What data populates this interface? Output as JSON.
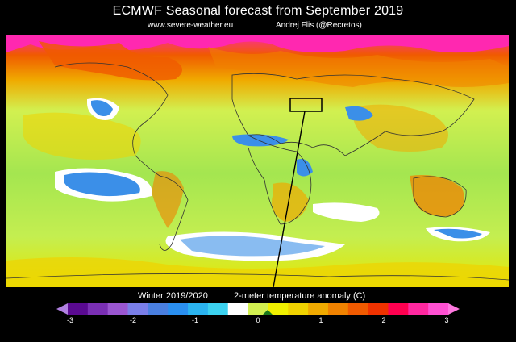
{
  "header": {
    "title": "ECMWF Seasonal forecast from September 2019",
    "site": "www.severe-weather.eu",
    "author": "Andrej Flis (@Recretos)"
  },
  "map": {
    "kind": "world temperature anomaly map",
    "highlight_box": "marked region (Caspian / Black Sea area) with pointer line to colorbar"
  },
  "colorbar": {
    "season": "Winter 2019/2020",
    "variable": "2-meter temperature anomaly (C)",
    "ticks": [
      "-3",
      "-2",
      "-1",
      "0",
      "1",
      "2",
      "3"
    ],
    "colors": [
      "#5a0a91",
      "#7a2fb4",
      "#9a56d0",
      "#7a7ee8",
      "#4a7fe0",
      "#2a8ff0",
      "#2bb4f0",
      "#3cd2f0",
      "#ffffff",
      "#d2f050",
      "#f0f000",
      "#f0d200",
      "#f0aa00",
      "#f08200",
      "#f05a00",
      "#f03200",
      "#ff0050",
      "#ff28a0",
      "#ff50d2"
    ],
    "arrow_left_color": "#b080e0",
    "arrow_right_color": "#ff78e0"
  },
  "legend_colors": {
    "ocean_base": "#a4e650",
    "cold_anomaly": "#3b8fe8",
    "neutral": "#ffffff",
    "warm_anomaly": "#f0aa00",
    "hot_anomaly": "#ff3c78"
  }
}
